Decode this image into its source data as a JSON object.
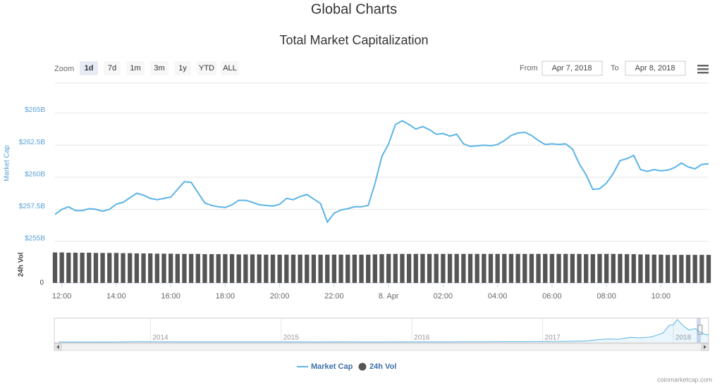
{
  "chart_data": [
    {
      "type": "line",
      "title": "Global Charts",
      "subtitle": "Total Market Capitalization",
      "zoom_label": "Zoom",
      "zoom_buttons": [
        "1d",
        "7d",
        "1m",
        "3m",
        "1y",
        "YTD",
        "ALL"
      ],
      "selected_zoom": 0,
      "range": {
        "from_label": "From",
        "from": "Apr 7, 2018",
        "to_label": "To",
        "to": "Apr 8, 2018"
      },
      "x": [
        11.75,
        12,
        12.25,
        12.5,
        12.75,
        13,
        13.25,
        13.5,
        13.75,
        14,
        14.25,
        14.5,
        14.75,
        15,
        15.25,
        15.5,
        15.75,
        16,
        16.25,
        16.5,
        16.75,
        17,
        17.25,
        17.5,
        17.75,
        18,
        18.25,
        18.5,
        18.75,
        19,
        19.25,
        19.5,
        19.75,
        20,
        20.25,
        20.5,
        20.75,
        21,
        21.25,
        21.5,
        21.75,
        22,
        22.25,
        22.5,
        22.75,
        23,
        23.25,
        23.5,
        23.75,
        24,
        24.25,
        24.5,
        24.75,
        25,
        25.25,
        25.5,
        25.75,
        26,
        26.25,
        26.5,
        26.75,
        27,
        27.25,
        27.5,
        27.75,
        28,
        28.25,
        28.5,
        28.75,
        29,
        29.25,
        29.5,
        29.75,
        30,
        30.25,
        30.5,
        30.75,
        31,
        31.25,
        31.5,
        31.75,
        32,
        32.25,
        32.5,
        32.75,
        33,
        33.25,
        33.5,
        33.75,
        34,
        34.25,
        34.5,
        34.75,
        35,
        35.25,
        35.5,
        35.75
      ],
      "xlim": [
        11.75,
        35.75
      ],
      "xticks": [
        {
          "value": 12,
          "label": "12:00"
        },
        {
          "value": 14,
          "label": "14:00"
        },
        {
          "value": 16,
          "label": "16:00"
        },
        {
          "value": 18,
          "label": "18:00"
        },
        {
          "value": 20,
          "label": "20:00"
        },
        {
          "value": 22,
          "label": "22:00"
        },
        {
          "value": 24,
          "label": "8. Apr"
        },
        {
          "value": 26,
          "label": "02:00"
        },
        {
          "value": 28,
          "label": "04:00"
        },
        {
          "value": 30,
          "label": "06:00"
        },
        {
          "value": 32,
          "label": "08:00"
        },
        {
          "value": 34,
          "label": "10:00"
        }
      ],
      "ylabel": "Market Cap",
      "ylim": [
        255,
        267.5
      ],
      "yticks": [
        {
          "value": 255,
          "label": "$255B"
        },
        {
          "value": 257.5,
          "label": "$257.5B"
        },
        {
          "value": 260,
          "label": "$260B"
        },
        {
          "value": 262.5,
          "label": "$262.5B"
        },
        {
          "value": 265,
          "label": "$265B"
        }
      ],
      "y2label": "24h Vol",
      "y2lim": [
        0,
        15
      ],
      "y2ticks": [
        0
      ],
      "grid": true,
      "series": [
        {
          "name": "Market Cap",
          "color": "#5cb4e6",
          "values": [
            257.1,
            257.5,
            257.7,
            257.4,
            257.4,
            257.55,
            257.5,
            257.35,
            257.5,
            257.9,
            258.05,
            258.4,
            258.75,
            258.6,
            258.35,
            258.25,
            258.35,
            258.45,
            259.05,
            259.65,
            259.6,
            258.8,
            258.0,
            257.8,
            257.7,
            257.65,
            257.85,
            258.2,
            258.2,
            258.05,
            257.85,
            257.8,
            257.75,
            257.9,
            258.35,
            258.25,
            258.5,
            258.65,
            258.3,
            257.95,
            256.5,
            257.2,
            257.45,
            257.55,
            257.7,
            257.7,
            257.8,
            259.5,
            261.6,
            262.6,
            264.1,
            264.4,
            264.1,
            263.75,
            263.95,
            263.7,
            263.35,
            263.4,
            263.2,
            263.35,
            262.6,
            262.4,
            262.45,
            262.5,
            262.45,
            262.55,
            262.85,
            263.25,
            263.45,
            263.5,
            263.25,
            262.85,
            262.55,
            262.6,
            262.55,
            262.6,
            262.2,
            261.05,
            260.2,
            259.05,
            259.1,
            259.55,
            260.3,
            261.3,
            261.45,
            261.7,
            260.6,
            260.45,
            260.6,
            260.5,
            260.55,
            260.75,
            261.1,
            260.8,
            260.65,
            261.0,
            261.05
          ]
        },
        {
          "name": "24h Vol",
          "color": "#555555",
          "type": "bar",
          "axis": "y2",
          "values": [
            12.5,
            12.5,
            12.4,
            12.4,
            12.4,
            12.4,
            12.3,
            12.3,
            12.3,
            12.3,
            12.2,
            12.2,
            12.1,
            12.1,
            12.1,
            12.0,
            12.0,
            12.0,
            11.9,
            11.9,
            11.9,
            11.9,
            11.8,
            11.8,
            11.8,
            11.8,
            11.8,
            11.7,
            11.7,
            11.7,
            11.7,
            11.6,
            11.6,
            11.6,
            11.6,
            11.6,
            11.6,
            11.6,
            11.6,
            11.6,
            11.6,
            11.6,
            11.6,
            11.6,
            11.6,
            11.6,
            11.6,
            11.7,
            11.8,
            11.9,
            11.9,
            11.9,
            11.9,
            11.9,
            11.9,
            11.9,
            11.9,
            11.9,
            11.9,
            11.9,
            11.9,
            11.9,
            11.9,
            11.9,
            11.9,
            11.9,
            11.9,
            11.9,
            11.9,
            11.9,
            11.9,
            11.9,
            11.9,
            11.9,
            11.9,
            11.9,
            11.9,
            11.9,
            11.8,
            11.8,
            11.9,
            11.9,
            11.9,
            11.9,
            11.8,
            11.8,
            11.7,
            11.7,
            11.6,
            11.6,
            11.5,
            11.5,
            11.5,
            11.5,
            11.5,
            11.5,
            11.5
          ]
        }
      ],
      "legend": "bottom",
      "credit": "coinmarketcap.com"
    },
    {
      "type": "area",
      "color": "#5cb4e6",
      "x": [
        2013.3,
        2013.5,
        2013.75,
        2013.92,
        2014.0,
        2014.25,
        2014.5,
        2014.75,
        2015.0,
        2015.25,
        2015.5,
        2015.75,
        2016.0,
        2016.25,
        2016.5,
        2016.75,
        2017.0,
        2017.17,
        2017.33,
        2017.42,
        2017.5,
        2017.58,
        2017.67,
        2017.75,
        2017.83,
        2017.92,
        2017.97,
        2018.0,
        2018.03,
        2018.08,
        2018.12,
        2018.17,
        2018.2,
        2018.25,
        2018.27
      ],
      "values": [
        1.5,
        1.2,
        2,
        12,
        10,
        6,
        8,
        5,
        4,
        3.5,
        4,
        3.5,
        7,
        7,
        11,
        12,
        18,
        22,
        40,
        80,
        110,
        100,
        170,
        150,
        180,
        320,
        600,
        610,
        800,
        560,
        430,
        480,
        360,
        260,
        265
      ],
      "xlim": [
        2013.27,
        2018.27
      ],
      "xticks": [
        2014,
        2015,
        2016,
        2017,
        2018
      ],
      "ylim": [
        0,
        850
      ]
    }
  ]
}
